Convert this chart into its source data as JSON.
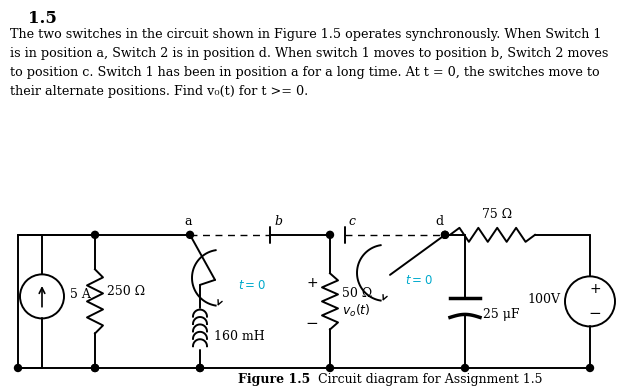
{
  "background_color": "#ffffff",
  "line_color": "#000000",
  "switch_color": "#00aacc",
  "title": "1.5",
  "paragraph_lines": [
    "The two switches in the circuit shown in Figure 1.5 operates synchronously. When Switch 1",
    "is in position a, Switch 2 is in position d. When switch 1 moves to position b, Switch 2 moves",
    "to position c. Switch 1 has been in position a for a long time. At t = 0, the switches move to",
    "their alternate positions. Find v₀(t) for t >= 0."
  ],
  "caption_bold": "Figure 1.5",
  "caption_normal": "  Circuit diagram for Assignment 1.5"
}
